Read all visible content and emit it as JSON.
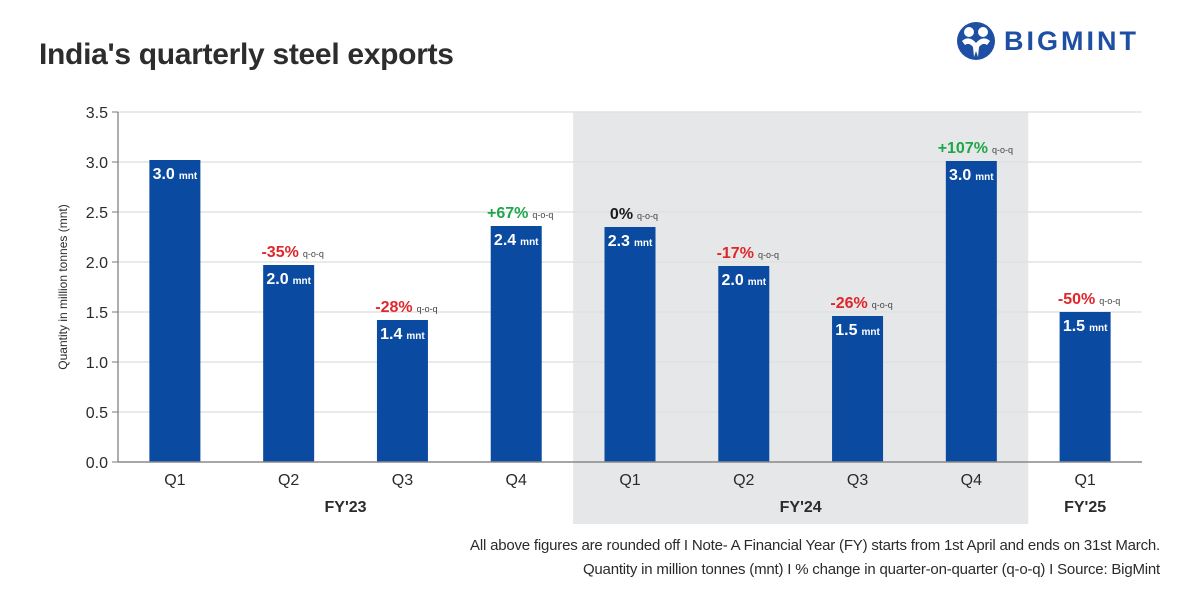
{
  "header": {
    "title": "India's quarterly steel exports",
    "logo_text": "BIGMINT",
    "logo_icon": "bigmint-people-icon"
  },
  "colors": {
    "bar": "#0a4aa0",
    "positive": "#1fa64a",
    "negative": "#e0262a",
    "neutral": "#1a1a1a",
    "highlight_band": "#e6e7e8",
    "brand": "#1f4fa3"
  },
  "chart_data": {
    "type": "bar",
    "title": "India's quarterly steel exports",
    "xlabel": "",
    "ylabel": "Quantity in million tonnes (mnt)",
    "ylim": [
      0,
      3.5
    ],
    "yticks": [
      "0.0",
      "0.5",
      "1.0",
      "1.5",
      "2.0",
      "2.5",
      "3.0",
      "3.5"
    ],
    "grid": true,
    "categories": [
      "Q1",
      "Q2",
      "Q3",
      "Q4",
      "Q1",
      "Q2",
      "Q3",
      "Q4",
      "Q1"
    ],
    "groups": [
      {
        "label": "FY'23",
        "start": 0,
        "end": 3,
        "highlighted": false
      },
      {
        "label": "FY'24",
        "start": 4,
        "end": 7,
        "highlighted": true
      },
      {
        "label": "FY'25",
        "start": 8,
        "end": 8,
        "highlighted": false
      }
    ],
    "series": [
      {
        "name": "Steel exports",
        "values": [
          3.02,
          1.97,
          1.42,
          2.36,
          2.35,
          1.96,
          1.46,
          3.01,
          1.5
        ],
        "value_labels": [
          "3.0",
          "2.0",
          "1.4",
          "2.4",
          "2.3",
          "2.0",
          "1.5",
          "3.0",
          "1.5"
        ],
        "value_unit": "mnt"
      }
    ],
    "annotations": [
      null,
      {
        "text": "-35%",
        "suffix": "q-o-q",
        "sign": "negative"
      },
      {
        "text": "-28%",
        "suffix": "q-o-q",
        "sign": "negative"
      },
      {
        "text": "+67%",
        "suffix": "q-o-q",
        "sign": "positive"
      },
      {
        "text": "0%",
        "suffix": "q-o-q",
        "sign": "neutral"
      },
      {
        "text": "-17%",
        "suffix": "q-o-q",
        "sign": "negative"
      },
      {
        "text": "-26%",
        "suffix": "q-o-q",
        "sign": "negative"
      },
      {
        "text": "+107%",
        "suffix": "q-o-q",
        "sign": "positive"
      },
      {
        "text": "-50%",
        "suffix": "q-o-q",
        "sign": "negative"
      }
    ]
  },
  "footer": {
    "line1": "All above figures are rounded off  I  Note- A Financial Year (FY) starts from 1st April and ends on 31st March.",
    "line2": "Quantity in million tonnes (mnt)  I  % change in quarter-on-quarter (q-o-q)  I  Source: BigMint"
  }
}
